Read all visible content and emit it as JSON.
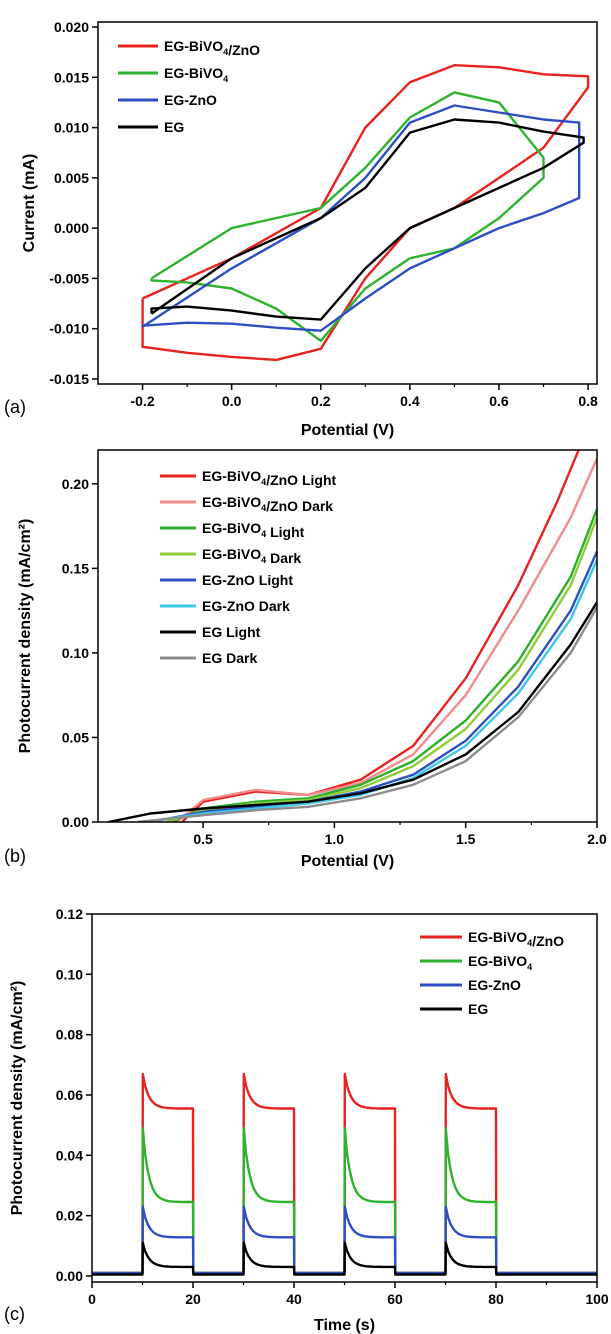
{
  "chart_data": [
    {
      "panel_label": "(a)",
      "type": "line",
      "xlabel": "Potential (V)",
      "ylabel": "Current (mA)",
      "xlim": [
        -0.3,
        0.82
      ],
      "ylim": [
        -0.0155,
        0.0205
      ],
      "xticks": [
        -0.2,
        0.0,
        0.2,
        0.4,
        0.6,
        0.8
      ],
      "xtick_labels": [
        "-0.2",
        "0.0",
        "0.2",
        "0.4",
        "0.6",
        "0.8"
      ],
      "yticks": [
        -0.015,
        -0.01,
        -0.005,
        0.0,
        0.005,
        0.01,
        0.015,
        0.02
      ],
      "ytick_labels": [
        "-0.015",
        "-0.010",
        "-0.005",
        "0.000",
        "0.005",
        "0.010",
        "0.015",
        "0.020"
      ],
      "legend_position": "top-left",
      "series": [
        {
          "name": "EG-BiVO4/ZnO",
          "color": "#e8221f",
          "x": [
            -0.2,
            0.0,
            0.2,
            0.3,
            0.4,
            0.5,
            0.6,
            0.7,
            0.8,
            0.8,
            0.7,
            0.6,
            0.5,
            0.4,
            0.3,
            0.2,
            0.1,
            0.0,
            -0.1,
            -0.2,
            -0.2
          ],
          "y": [
            -0.007,
            -0.003,
            0.002,
            0.01,
            0.0145,
            0.0162,
            0.016,
            0.0153,
            0.0151,
            0.014,
            0.008,
            0.005,
            0.002,
            0.0,
            -0.005,
            -0.012,
            -0.0131,
            -0.0128,
            -0.0124,
            -0.0118,
            -0.007
          ]
        },
        {
          "name": "EG-BiVO4",
          "color": "#2db32d",
          "x": [
            -0.18,
            0.0,
            0.2,
            0.3,
            0.4,
            0.5,
            0.6,
            0.7,
            0.7,
            0.6,
            0.5,
            0.4,
            0.3,
            0.2,
            0.1,
            0.0,
            -0.1,
            -0.18,
            -0.18
          ],
          "y": [
            -0.005,
            0.0,
            0.002,
            0.006,
            0.011,
            0.0135,
            0.0125,
            0.007,
            0.005,
            0.001,
            -0.002,
            -0.003,
            -0.006,
            -0.0112,
            -0.008,
            -0.006,
            -0.0054,
            -0.0052,
            -0.005
          ]
        },
        {
          "name": "EG-ZnO",
          "color": "#2e4fc4",
          "x": [
            -0.2,
            0.0,
            0.2,
            0.3,
            0.4,
            0.5,
            0.6,
            0.7,
            0.78,
            0.78,
            0.7,
            0.6,
            0.5,
            0.4,
            0.3,
            0.2,
            0.1,
            0.0,
            -0.1,
            -0.2,
            -0.2
          ],
          "y": [
            -0.0098,
            -0.004,
            0.001,
            0.005,
            0.0105,
            0.0122,
            0.0115,
            0.0108,
            0.0105,
            0.003,
            0.0015,
            0.0,
            -0.002,
            -0.004,
            -0.007,
            -0.0102,
            -0.0099,
            -0.0095,
            -0.0094,
            -0.0097,
            -0.0098
          ]
        },
        {
          "name": "EG",
          "color": "#000000",
          "x": [
            -0.18,
            0.0,
            0.2,
            0.3,
            0.4,
            0.5,
            0.6,
            0.7,
            0.79,
            0.79,
            0.7,
            0.6,
            0.5,
            0.4,
            0.3,
            0.2,
            0.1,
            0.0,
            -0.1,
            -0.18,
            -0.18
          ],
          "y": [
            -0.0085,
            -0.003,
            0.001,
            0.004,
            0.0095,
            0.0108,
            0.0105,
            0.0096,
            0.009,
            0.0085,
            0.006,
            0.004,
            0.002,
            0.0,
            -0.004,
            -0.0091,
            -0.0088,
            -0.0082,
            -0.0078,
            -0.008,
            -0.0085
          ]
        }
      ]
    },
    {
      "panel_label": "(b)",
      "type": "line",
      "xlabel": "Potential (V)",
      "ylabel": "Photocurrent density (mA/cm²)",
      "xlim": [
        0.1,
        2.0
      ],
      "ylim": [
        0.0,
        0.22
      ],
      "xticks": [
        0.5,
        1.0,
        1.5,
        2.0
      ],
      "xtick_labels": [
        "0.5",
        "1.0",
        "1.5",
        "2.0"
      ],
      "yticks": [
        0.0,
        0.05,
        0.1,
        0.15,
        0.2
      ],
      "ytick_labels": [
        "0.00",
        "0.05",
        "0.10",
        "0.15",
        "0.20"
      ],
      "legend_position": "top-left",
      "series": [
        {
          "name": "EG-BiVO4/ZnO Light",
          "color": "#e8221f",
          "x": [
            0.42,
            0.5,
            0.7,
            0.9,
            1.1,
            1.3,
            1.5,
            1.7,
            1.85,
            1.93
          ],
          "y": [
            0.0,
            0.012,
            0.018,
            0.016,
            0.025,
            0.045,
            0.085,
            0.14,
            0.19,
            0.22
          ]
        },
        {
          "name": "EG-BiVO4/ZnO Dark",
          "color": "#f08c8c",
          "x": [
            0.4,
            0.5,
            0.7,
            0.9,
            1.1,
            1.3,
            1.5,
            1.7,
            1.9,
            2.0
          ],
          "y": [
            0.0,
            0.013,
            0.019,
            0.016,
            0.023,
            0.04,
            0.075,
            0.125,
            0.18,
            0.215
          ]
        },
        {
          "name": "EG-BiVO4 Light",
          "color": "#2ab02a",
          "x": [
            0.38,
            0.5,
            0.7,
            0.9,
            1.1,
            1.3,
            1.5,
            1.7,
            1.9,
            2.0
          ],
          "y": [
            0.0,
            0.008,
            0.012,
            0.014,
            0.022,
            0.036,
            0.06,
            0.095,
            0.145,
            0.185
          ]
        },
        {
          "name": "EG-BiVO4 Dark",
          "color": "#8fcc3a",
          "x": [
            0.36,
            0.5,
            0.7,
            0.9,
            1.1,
            1.3,
            1.5,
            1.7,
            1.9,
            2.0
          ],
          "y": [
            0.0,
            0.007,
            0.011,
            0.013,
            0.02,
            0.033,
            0.055,
            0.09,
            0.14,
            0.18
          ]
        },
        {
          "name": "EG-ZnO Light",
          "color": "#2e4fc4",
          "x": [
            0.3,
            0.5,
            0.7,
            0.9,
            1.1,
            1.3,
            1.5,
            1.7,
            1.9,
            2.0
          ],
          "y": [
            0.0,
            0.006,
            0.009,
            0.012,
            0.018,
            0.028,
            0.048,
            0.08,
            0.125,
            0.16
          ]
        },
        {
          "name": "EG-ZnO Dark",
          "color": "#3cc8e8",
          "x": [
            0.28,
            0.5,
            0.7,
            0.9,
            1.1,
            1.3,
            1.5,
            1.7,
            1.9,
            2.0
          ],
          "y": [
            0.0,
            0.005,
            0.008,
            0.011,
            0.016,
            0.026,
            0.045,
            0.076,
            0.12,
            0.155
          ]
        },
        {
          "name": "EG Light",
          "color": "#000000",
          "x": [
            0.14,
            0.3,
            0.5,
            0.7,
            0.9,
            1.1,
            1.3,
            1.5,
            1.7,
            1.9,
            2.0
          ],
          "y": [
            0.0,
            0.005,
            0.008,
            0.01,
            0.012,
            0.017,
            0.025,
            0.04,
            0.065,
            0.105,
            0.13
          ]
        },
        {
          "name": "EG Dark",
          "color": "#8c8c8c",
          "x": [
            0.25,
            0.5,
            0.7,
            0.9,
            1.1,
            1.3,
            1.5,
            1.7,
            1.9,
            2.0
          ],
          "y": [
            0.0,
            0.004,
            0.007,
            0.009,
            0.014,
            0.022,
            0.036,
            0.062,
            0.1,
            0.127
          ]
        }
      ]
    },
    {
      "panel_label": "(c)",
      "type": "line",
      "xlabel": "Time (s)",
      "ylabel": "Photocurrent density (mA/cm²)",
      "xlim": [
        0,
        100
      ],
      "ylim": [
        -0.002,
        0.12
      ],
      "xticks": [
        0,
        20,
        40,
        60,
        80,
        100
      ],
      "xtick_labels": [
        "0",
        "20",
        "40",
        "60",
        "80",
        "100"
      ],
      "yticks": [
        0.0,
        0.02,
        0.04,
        0.06,
        0.08,
        0.1,
        0.12
      ],
      "ytick_labels": [
        "0.00",
        "0.02",
        "0.04",
        "0.06",
        "0.08",
        "0.10",
        "0.12"
      ],
      "legend_position": "top-right",
      "light_on_intervals": [
        [
          10,
          20
        ],
        [
          30,
          40
        ],
        [
          50,
          60
        ],
        [
          70,
          80
        ]
      ],
      "series": [
        {
          "name": "EG-BiVO4/ZnO",
          "color": "#e8221f",
          "baseline": 0.001,
          "peak": 0.067,
          "steady": 0.0555
        },
        {
          "name": "EG-BiVO4",
          "color": "#2db32d",
          "baseline": 0.001,
          "peak": 0.049,
          "steady": 0.0245
        },
        {
          "name": "EG-ZnO",
          "color": "#2e4fc4",
          "baseline": 0.001,
          "peak": 0.023,
          "steady": 0.0128
        },
        {
          "name": "EG",
          "color": "#000000",
          "baseline": 0.0005,
          "peak": 0.011,
          "steady": 0.003
        }
      ]
    }
  ]
}
